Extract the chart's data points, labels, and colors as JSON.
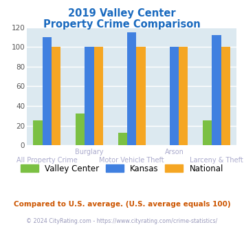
{
  "title_line1": "2019 Valley Center",
  "title_line2": "Property Crime Comparison",
  "title_color": "#1a6abf",
  "categories": [
    "All Property Crime",
    "Burglary",
    "Motor Vehicle Theft",
    "Arson",
    "Larceny & Theft"
  ],
  "category_labels_row1": [
    "",
    "Burglary",
    "",
    "Arson",
    ""
  ],
  "category_labels_row2": [
    "All Property Crime",
    "",
    "Motor Vehicle Theft",
    "",
    "Larceny & Theft"
  ],
  "valley_center": [
    25,
    32,
    13,
    0,
    25
  ],
  "kansas": [
    110,
    100,
    115,
    100,
    112
  ],
  "national": [
    100,
    100,
    100,
    100,
    100
  ],
  "bar_colors": {
    "valley_center": "#7bc043",
    "kansas": "#4080e0",
    "national": "#f5a623"
  },
  "ylim": [
    0,
    120
  ],
  "yticks": [
    0,
    20,
    40,
    60,
    80,
    100,
    120
  ],
  "plot_bg": "#dce9f0",
  "legend_labels": [
    "Valley Center",
    "Kansas",
    "National"
  ],
  "footnote1": "Compared to U.S. average. (U.S. average equals 100)",
  "footnote2": "© 2024 CityRating.com - https://www.cityrating.com/crime-statistics/",
  "footnote1_color": "#cc5500",
  "footnote2_color": "#9999bb",
  "label_color": "#aaaacc"
}
